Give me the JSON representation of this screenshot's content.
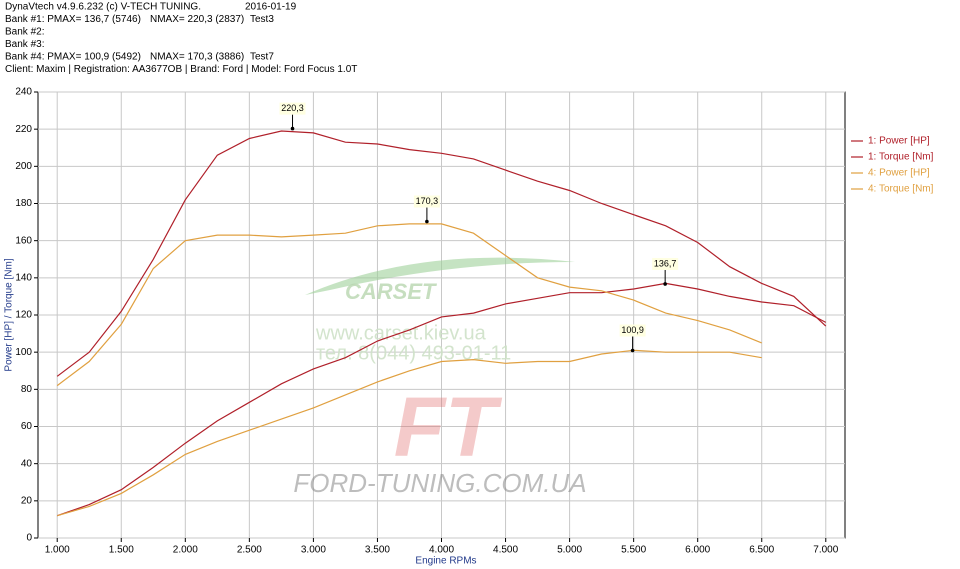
{
  "header": [
    [
      "DynaVtech v4.9.6.232 (c) V-TECH TUNING.",
      "2016-01-19"
    ],
    [
      "Bank #1: PMAX= 136,7 (5746)",
      "NMAX= 220,3 (2837)",
      "Test3"
    ],
    [
      "Bank #2:"
    ],
    [
      "Bank #3:"
    ],
    [
      "Bank #4: PMAX= 100,9 (5492)",
      "NMAX= 170,3 (3886)",
      "Test7"
    ],
    [
      "Client: Maxim | Registration: AA3677OB | Brand: Ford | Model: Ford Focus 1.0T"
    ]
  ],
  "watermarks": [
    "CARSET",
    "www.carset.kiev.ua",
    "тел. 8(044) 493-01-11",
    "FT",
    "FORD-TUNING.COM.UA"
  ],
  "chart_data": {
    "type": "line",
    "x_label": "Engine RPMs",
    "y_label": "Power [HP] / Torque [Nm]",
    "xlim": [
      850,
      7150
    ],
    "ylim": [
      0,
      240
    ],
    "grid": true,
    "legend": "right",
    "xticks": [
      {
        "value": 1000,
        "label": "1.000"
      },
      {
        "value": 1500,
        "label": "1.500"
      },
      {
        "value": 2000,
        "label": "2.000"
      },
      {
        "value": 2500,
        "label": "2.500"
      },
      {
        "value": 3000,
        "label": "3.000"
      },
      {
        "value": 3500,
        "label": "3.500"
      },
      {
        "value": 4000,
        "label": "4.000"
      },
      {
        "value": 4500,
        "label": "4.500"
      },
      {
        "value": 5000,
        "label": "5.000"
      },
      {
        "value": 5500,
        "label": "5.500"
      },
      {
        "value": 6000,
        "label": "6.000"
      },
      {
        "value": 6500,
        "label": "6.500"
      },
      {
        "value": 7000,
        "label": "7.000"
      }
    ],
    "yticks": [
      0,
      20,
      40,
      60,
      80,
      100,
      120,
      140,
      160,
      180,
      200,
      220,
      240
    ],
    "x": [
      1000,
      1250,
      1500,
      1750,
      2000,
      2250,
      2500,
      2750,
      3000,
      3250,
      3500,
      3750,
      4000,
      4250,
      4500,
      4750,
      5000,
      5250,
      5500,
      5750,
      6000,
      6250,
      6500,
      6750,
      7000
    ],
    "series": [
      {
        "name": "1: Power [HP]",
        "color": "#b0202a",
        "values": [
          12,
          18,
          26,
          38,
          51,
          63,
          73,
          83,
          91,
          97,
          106,
          112,
          119,
          121,
          126,
          129,
          132,
          132,
          134,
          137,
          134,
          130,
          127,
          125,
          116
        ]
      },
      {
        "name": "1: Torque [Nm]",
        "color": "#b0202a",
        "values": [
          87,
          100,
          122,
          150,
          182,
          206,
          215,
          219,
          218,
          213,
          212,
          209,
          207,
          204,
          198,
          192,
          187,
          180,
          174,
          168,
          159,
          146,
          137,
          130,
          114
        ]
      },
      {
        "name": "4: Power [HP]",
        "color": "#e0a040",
        "values": [
          12,
          17,
          24,
          34,
          45,
          52,
          58,
          64,
          70,
          77,
          84,
          90,
          95,
          96,
          94,
          95,
          95,
          99,
          101,
          100,
          100,
          100,
          97,
          null,
          null
        ]
      },
      {
        "name": "4: Torque [Nm]",
        "color": "#e0a040",
        "values": [
          82,
          95,
          115,
          145,
          160,
          163,
          163,
          162,
          163,
          164,
          168,
          169,
          169,
          164,
          152,
          140,
          135,
          133,
          128,
          121,
          117,
          112,
          105,
          null,
          null
        ]
      }
    ],
    "annotations": [
      {
        "text": "220,3",
        "x": 2837,
        "y": 220.3
      },
      {
        "text": "170,3",
        "x": 3886,
        "y": 170.3
      },
      {
        "text": "136,7",
        "x": 5746,
        "y": 136.7
      },
      {
        "text": "100,9",
        "x": 5492,
        "y": 100.9
      }
    ]
  }
}
